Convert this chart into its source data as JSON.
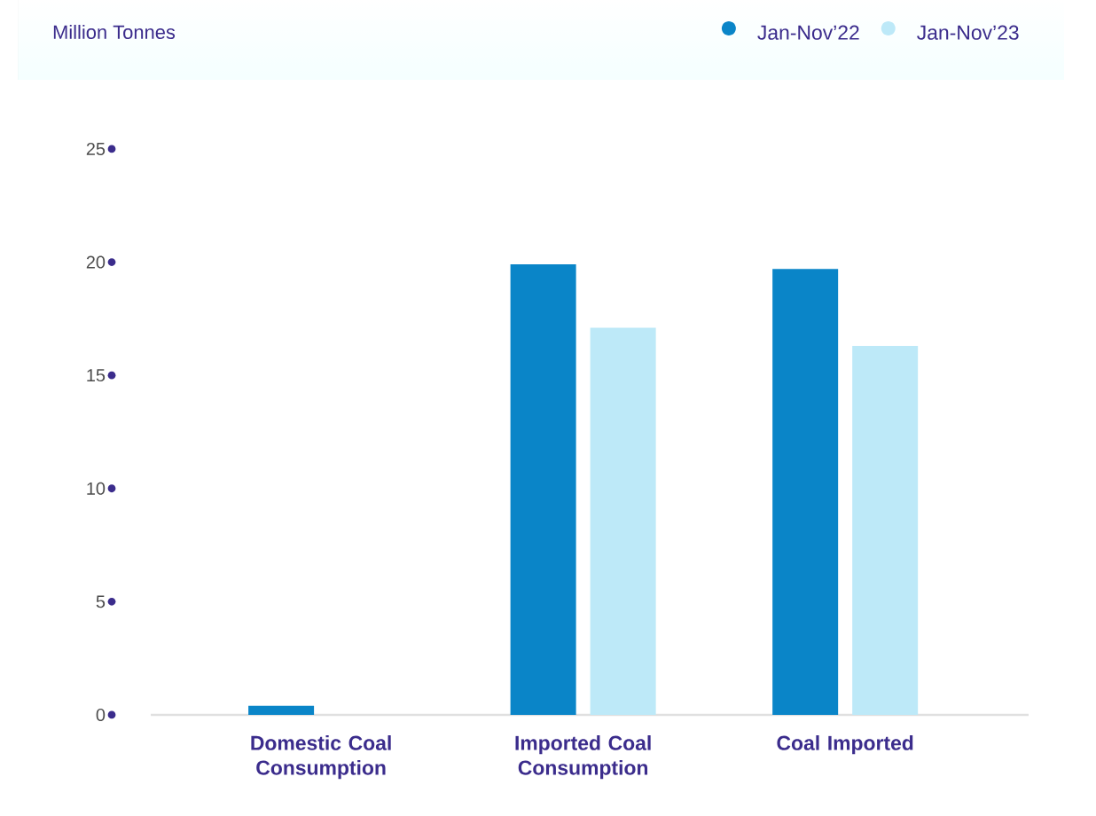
{
  "chart_data": {
    "type": "bar",
    "annotations": [
      "Million Tonnes"
    ],
    "categories": [
      "Domestic Coal Consumption",
      "Imported Coal Consumption",
      "Coal Imported"
    ],
    "series": [
      {
        "name": "Jan-Nov’22",
        "color": "#0a85c8",
        "values": [
          0.4,
          19.9,
          19.7
        ]
      },
      {
        "name": "Jan-Nov’23",
        "color": "#bde9f8",
        "values": [
          null,
          17.1,
          16.3
        ]
      }
    ],
    "ylim": [
      0,
      25
    ],
    "yticks": [
      0,
      5,
      10,
      15,
      20,
      25
    ],
    "legend": "top right"
  }
}
